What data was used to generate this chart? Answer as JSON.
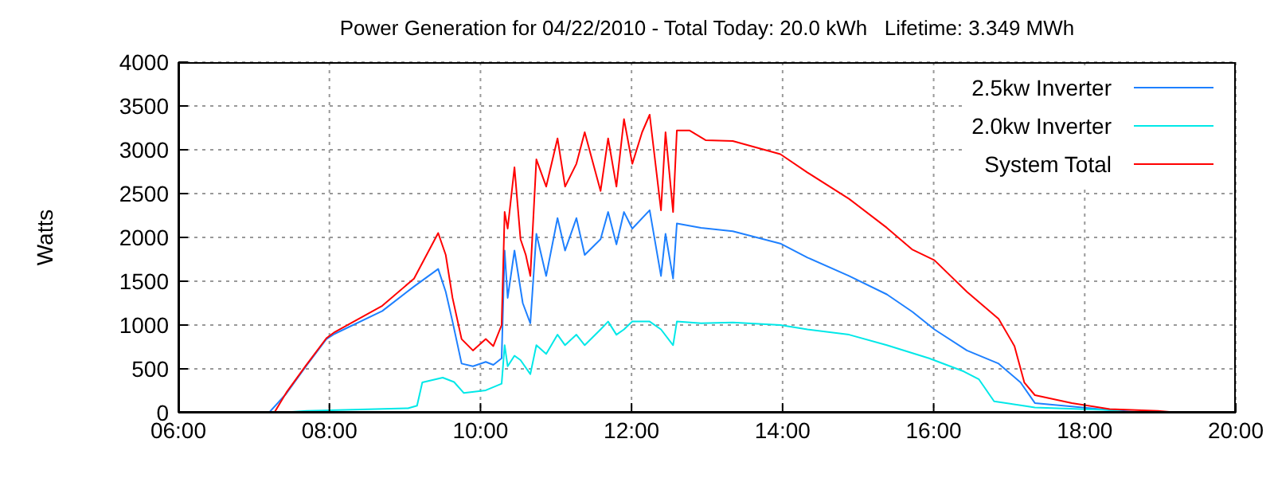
{
  "chart_data": {
    "type": "line",
    "title": "Power Generation for 04/22/2010 - Total Today: 20.0 kWh   Lifetime: 3.349 MWh",
    "ylabel": "Watts",
    "xlim": [
      6,
      20
    ],
    "xticks": [
      {
        "value": 6,
        "label": "06:00"
      },
      {
        "value": 8,
        "label": "08:00"
      },
      {
        "value": 10,
        "label": "10:00"
      },
      {
        "value": 12,
        "label": "12:00"
      },
      {
        "value": 14,
        "label": "14:00"
      },
      {
        "value": 16,
        "label": "16:00"
      },
      {
        "value": 18,
        "label": "18:00"
      },
      {
        "value": 20,
        "label": "20:00"
      }
    ],
    "ylim": [
      0,
      4000
    ],
    "yticks": [
      0,
      500,
      1000,
      1500,
      2000,
      2500,
      3000,
      3500,
      4000
    ],
    "grid": true,
    "legend": "top right",
    "marker": "none",
    "line_style": "solid",
    "series": [
      {
        "name": "2.5kw Inverter",
        "color": "#1e80ff",
        "x": [
          7.2,
          7.43,
          7.69,
          7.96,
          8.07,
          8.7,
          9.12,
          9.44,
          9.54,
          9.63,
          9.75,
          9.9,
          10.07,
          10.17,
          10.28,
          10.32,
          10.36,
          10.45,
          10.56,
          10.66,
          10.74,
          10.87,
          11.02,
          11.12,
          11.27,
          11.38,
          11.59,
          11.69,
          11.8,
          11.9,
          12.01,
          12.24,
          12.39,
          12.45,
          12.55,
          12.6,
          12.92,
          13.34,
          13.97,
          14.33,
          14.88,
          15.38,
          15.72,
          16.01,
          16.44,
          16.86,
          17.15,
          17.34,
          17.83,
          18.33,
          18.8
        ],
        "values": [
          0,
          218,
          530,
          840,
          900,
          1160,
          1440,
          1640,
          1380,
          1040,
          560,
          530,
          580,
          545,
          620,
          1850,
          1310,
          1850,
          1250,
          1020,
          2040,
          1560,
          2220,
          1850,
          2220,
          1800,
          1980,
          2290,
          1920,
          2290,
          2100,
          2310,
          1560,
          2040,
          1530,
          2160,
          2110,
          2070,
          1930,
          1770,
          1560,
          1350,
          1150,
          950,
          710,
          560,
          345,
          110,
          70,
          30,
          0
        ]
      },
      {
        "name": "2.0kw Inverter",
        "color": "#00e8e8",
        "x": [
          7.35,
          7.7,
          9.04,
          9.16,
          9.23,
          9.5,
          9.65,
          9.78,
          10.07,
          10.28,
          10.32,
          10.36,
          10.45,
          10.53,
          10.66,
          10.74,
          10.87,
          11.02,
          11.12,
          11.27,
          11.38,
          11.59,
          11.69,
          11.8,
          11.9,
          12.01,
          12.24,
          12.39,
          12.55,
          12.6,
          12.92,
          13.34,
          13.97,
          14.33,
          14.88,
          15.38,
          15.94,
          16.4,
          16.6,
          16.8,
          17.34,
          18.33,
          18.6
        ],
        "values": [
          0,
          20,
          50,
          80,
          345,
          400,
          350,
          224,
          255,
          330,
          770,
          530,
          650,
          600,
          440,
          770,
          670,
          890,
          770,
          890,
          770,
          950,
          1040,
          890,
          950,
          1040,
          1040,
          950,
          770,
          1040,
          1020,
          1030,
          1000,
          950,
          890,
          770,
          620,
          470,
          380,
          130,
          60,
          30,
          0
        ]
      },
      {
        "name": "System Total",
        "color": "#ff0000",
        "x": [
          7.27,
          7.43,
          7.69,
          7.96,
          8.07,
          8.7,
          9.12,
          9.44,
          9.54,
          9.63,
          9.75,
          9.9,
          10.07,
          10.17,
          10.28,
          10.32,
          10.36,
          10.45,
          10.53,
          10.6,
          10.66,
          10.74,
          10.87,
          11.02,
          11.12,
          11.27,
          11.38,
          11.59,
          11.69,
          11.8,
          11.9,
          12.01,
          12.14,
          12.24,
          12.39,
          12.45,
          12.55,
          12.6,
          12.77,
          12.98,
          13.34,
          13.97,
          14.33,
          14.88,
          15.38,
          15.72,
          16.01,
          16.44,
          16.86,
          17.07,
          17.2,
          17.34,
          17.83,
          18.33,
          18.97,
          19.24
        ],
        "values": [
          0,
          230,
          540,
          850,
          920,
          1220,
          1530,
          2050,
          1800,
          1310,
          840,
          710,
          840,
          760,
          1000,
          2290,
          2100,
          2800,
          1980,
          1800,
          1560,
          2890,
          2580,
          3130,
          2580,
          2840,
          3200,
          2530,
          3130,
          2580,
          3350,
          2840,
          3200,
          3400,
          2310,
          3200,
          2290,
          3220,
          3220,
          3110,
          3100,
          2950,
          2740,
          2440,
          2110,
          1860,
          1740,
          1380,
          1070,
          760,
          345,
          200,
          110,
          40,
          20,
          0
        ]
      }
    ]
  }
}
